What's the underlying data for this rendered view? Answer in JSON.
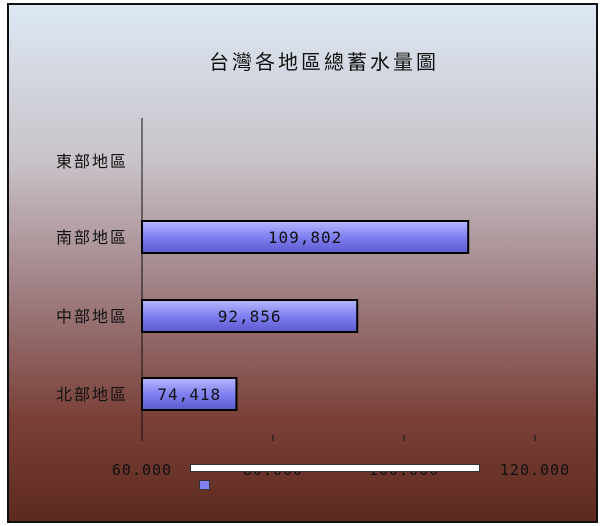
{
  "chart_data": {
    "type": "bar",
    "orientation": "horizontal",
    "title": "台灣各地區總蓄水量圖",
    "categories": [
      "東部地區",
      "南部地區",
      "中部地區",
      "北部地區"
    ],
    "values": [
      null,
      109802,
      92856,
      74418
    ],
    "data_labels": [
      "",
      "109,802",
      "92,856",
      "74,418"
    ],
    "xlim": [
      60000,
      120000
    ],
    "x_ticks": [
      60000,
      80000,
      100000,
      120000
    ],
    "x_tick_labels": [
      "60.000",
      "80.000",
      "100.000",
      "120.000"
    ],
    "grid": false,
    "legend": "bottom",
    "colors": {
      "bar": "#8080f0",
      "bar_dark": "#5a5ad0",
      "bar_light": "#b8b8ff"
    }
  }
}
